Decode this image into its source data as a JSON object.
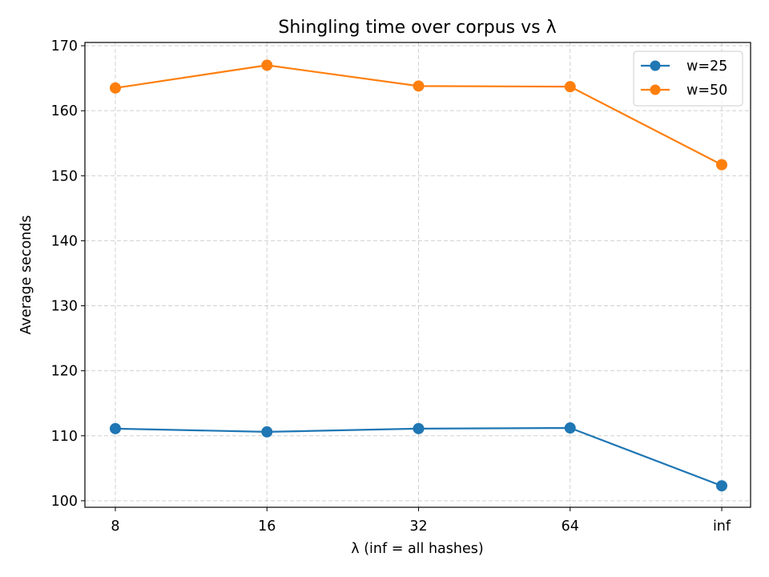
{
  "chart_data": {
    "type": "line",
    "title": "Shingling time over corpus vs λ",
    "xlabel": "λ (inf = all hashes)",
    "ylabel": "Average seconds",
    "categories": [
      "8",
      "16",
      "32",
      "64",
      "inf"
    ],
    "ylim": [
      99,
      170.5
    ],
    "yticks": [
      100,
      110,
      120,
      130,
      140,
      150,
      160,
      170
    ],
    "grid": true,
    "legend_position": "top-right",
    "series": [
      {
        "name": "w=25",
        "color": "#1f77b4",
        "marker": "circle",
        "values": [
          111.1,
          110.6,
          111.1,
          111.2,
          102.3
        ]
      },
      {
        "name": "w=50",
        "color": "#ff7f0e",
        "marker": "circle",
        "values": [
          163.5,
          167.0,
          163.8,
          163.7,
          151.7
        ]
      }
    ]
  }
}
